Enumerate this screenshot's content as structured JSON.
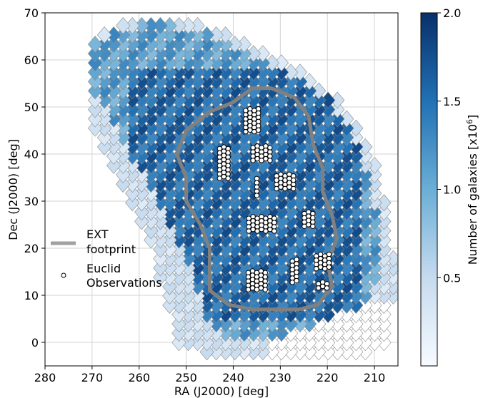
{
  "chart_data": {
    "type": "heatmap",
    "title": "",
    "xlabel": "RA (J2000) [deg]",
    "ylabel": "Dec (J2000) [deg]",
    "xlim": [
      280,
      205
    ],
    "ylim": [
      -5,
      70
    ],
    "x_ticks": [
      "280",
      "270",
      "260",
      "250",
      "240",
      "230",
      "220",
      "210"
    ],
    "y_ticks": [
      "70",
      "60",
      "50",
      "40",
      "30",
      "20",
      "10",
      "0"
    ],
    "grid": true,
    "colorbar": {
      "label": "Number of galaxies [x10^6]",
      "min": 0,
      "max": 2.0,
      "ticks": [
        "0.5",
        "1.0",
        "1.5",
        "2.0"
      ],
      "colors": [
        "#f7fbff",
        "#c6dbef",
        "#6baed6",
        "#2171b5",
        "#08306b"
      ]
    },
    "legend": {
      "position": "left-middle",
      "entries": [
        {
          "label_line1": "EXT",
          "label_line2": "footprint",
          "marker": "thick-grey-line"
        },
        {
          "label_line1": "Euclid",
          "label_line2": "Observations",
          "marker": "open-circle"
        }
      ]
    },
    "footprint_color": "#808080",
    "ext_footprint": [
      [
        245,
        49
      ],
      [
        240,
        51
      ],
      [
        236,
        54
      ],
      [
        232,
        54
      ],
      [
        227,
        52
      ],
      [
        224,
        48
      ],
      [
        223,
        42
      ],
      [
        221,
        37
      ],
      [
        221,
        32
      ],
      [
        219,
        27
      ],
      [
        218,
        22
      ],
      [
        220,
        17
      ],
      [
        219,
        12
      ],
      [
        222,
        8
      ],
      [
        226,
        7
      ],
      [
        231,
        7
      ],
      [
        236,
        7
      ],
      [
        241,
        8
      ],
      [
        245,
        11
      ],
      [
        245,
        15
      ],
      [
        245,
        20
      ],
      [
        247,
        25
      ],
      [
        250,
        30
      ],
      [
        250,
        35
      ],
      [
        252,
        40
      ],
      [
        250,
        45
      ]
    ],
    "euclid_fields": [
      {
        "center": [
          236,
          47
        ],
        "rows": 6,
        "cols": 4
      },
      {
        "center": [
          242,
          38
        ],
        "rows": 8,
        "cols": 3
      },
      {
        "center": [
          234,
          40
        ],
        "rows": 4,
        "cols": 5
      },
      {
        "center": [
          235,
          33
        ],
        "rows": 5,
        "cols": 1
      },
      {
        "center": [
          229,
          34
        ],
        "rows": 4,
        "cols": 5
      },
      {
        "center": [
          234,
          25
        ],
        "rows": 4,
        "cols": 7
      },
      {
        "center": [
          224,
          26
        ],
        "rows": 4,
        "cols": 3
      },
      {
        "center": [
          235,
          13
        ],
        "rows": 5,
        "cols": 5
      },
      {
        "center": [
          227,
          15
        ],
        "rows": 6,
        "cols": 2
      },
      {
        "center": [
          221,
          17
        ],
        "rows": 4,
        "cols": 4
      },
      {
        "center": [
          221,
          12
        ],
        "rows": 2,
        "cols": 3
      }
    ]
  }
}
